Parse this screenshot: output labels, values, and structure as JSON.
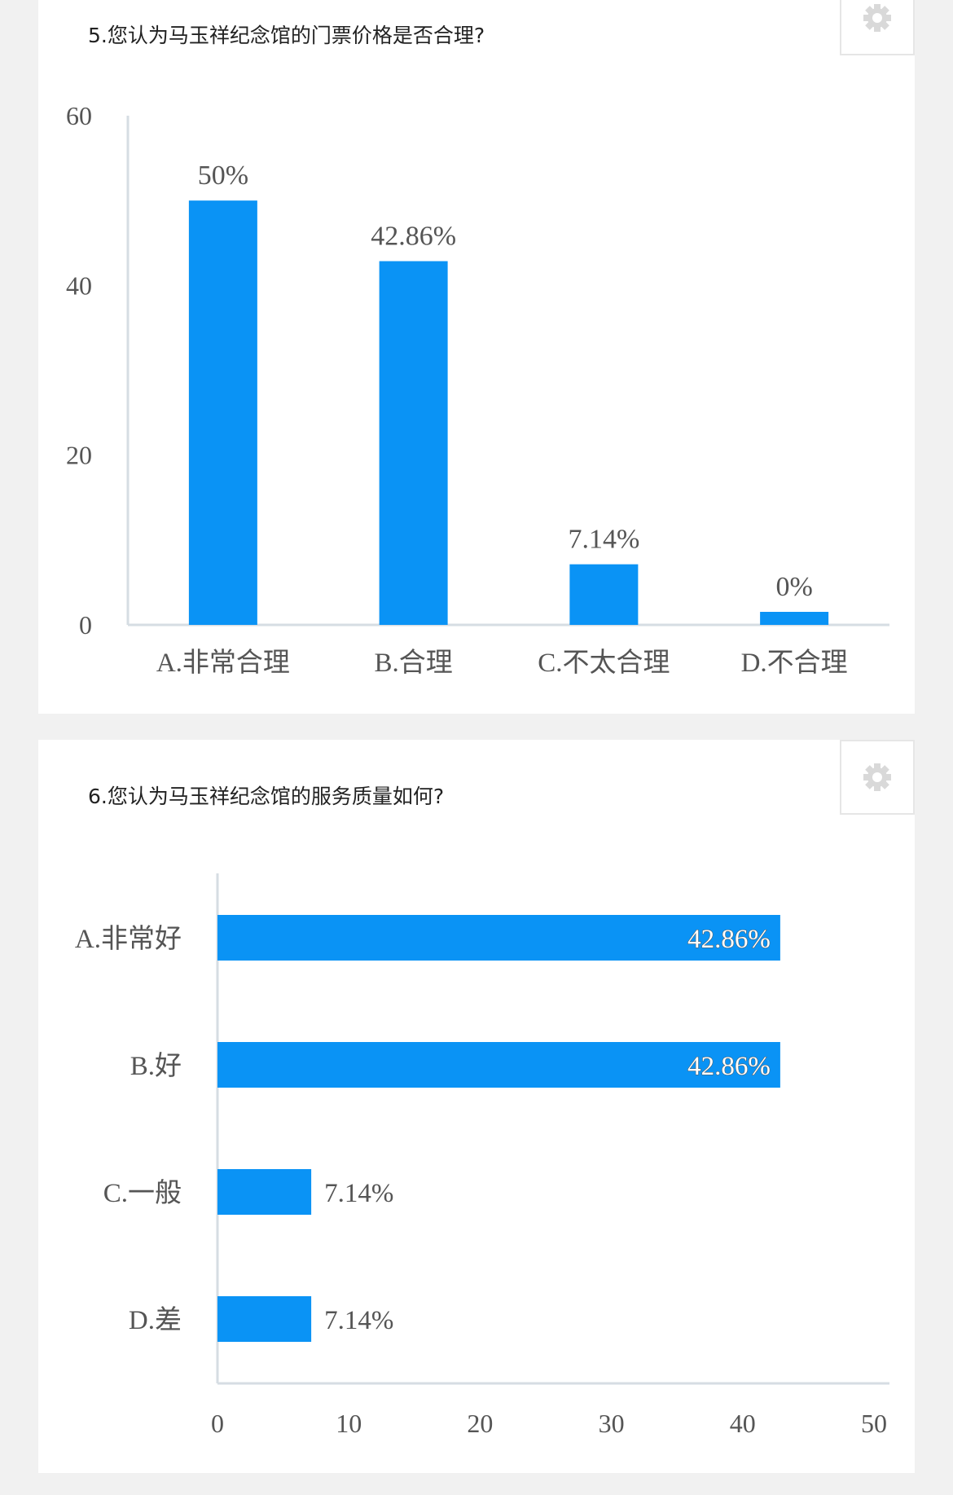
{
  "colors": {
    "bar": "#0a93f5",
    "axis": "#d6dde3",
    "text": "#555555",
    "background": "#f1f1f1"
  },
  "questions": [
    {
      "title": "5.您认为马玉祥纪念馆的门票价格是否合理?",
      "settings_icon": "gear-icon"
    },
    {
      "title": "6.您认为马玉祥纪念馆的服务质量如何?",
      "settings_icon": "gear-icon"
    }
  ],
  "chart_data": [
    {
      "type": "bar",
      "orientation": "vertical",
      "categories": [
        "A.非常合理",
        "B.合理",
        "C.不太合理",
        "D.不合理"
      ],
      "values": [
        50,
        42.86,
        7.14,
        0
      ],
      "data_labels": [
        "50%",
        "42.86%",
        "7.14%",
        "0%"
      ],
      "ylim": [
        0,
        60
      ],
      "yticks": [
        "0",
        "20",
        "40",
        "60"
      ],
      "grid": false,
      "legend": "none"
    },
    {
      "type": "bar",
      "orientation": "horizontal",
      "categories": [
        "A.非常好",
        "B.好",
        "C.一般",
        "D.差"
      ],
      "values": [
        42.86,
        42.86,
        7.14,
        7.14
      ],
      "data_labels": [
        "42.86%",
        "42.86%",
        "7.14%",
        "7.14%"
      ],
      "xlim": [
        0,
        50
      ],
      "xticks": [
        "0",
        "10",
        "20",
        "30",
        "40",
        "50"
      ],
      "grid": false,
      "legend": "none"
    }
  ]
}
